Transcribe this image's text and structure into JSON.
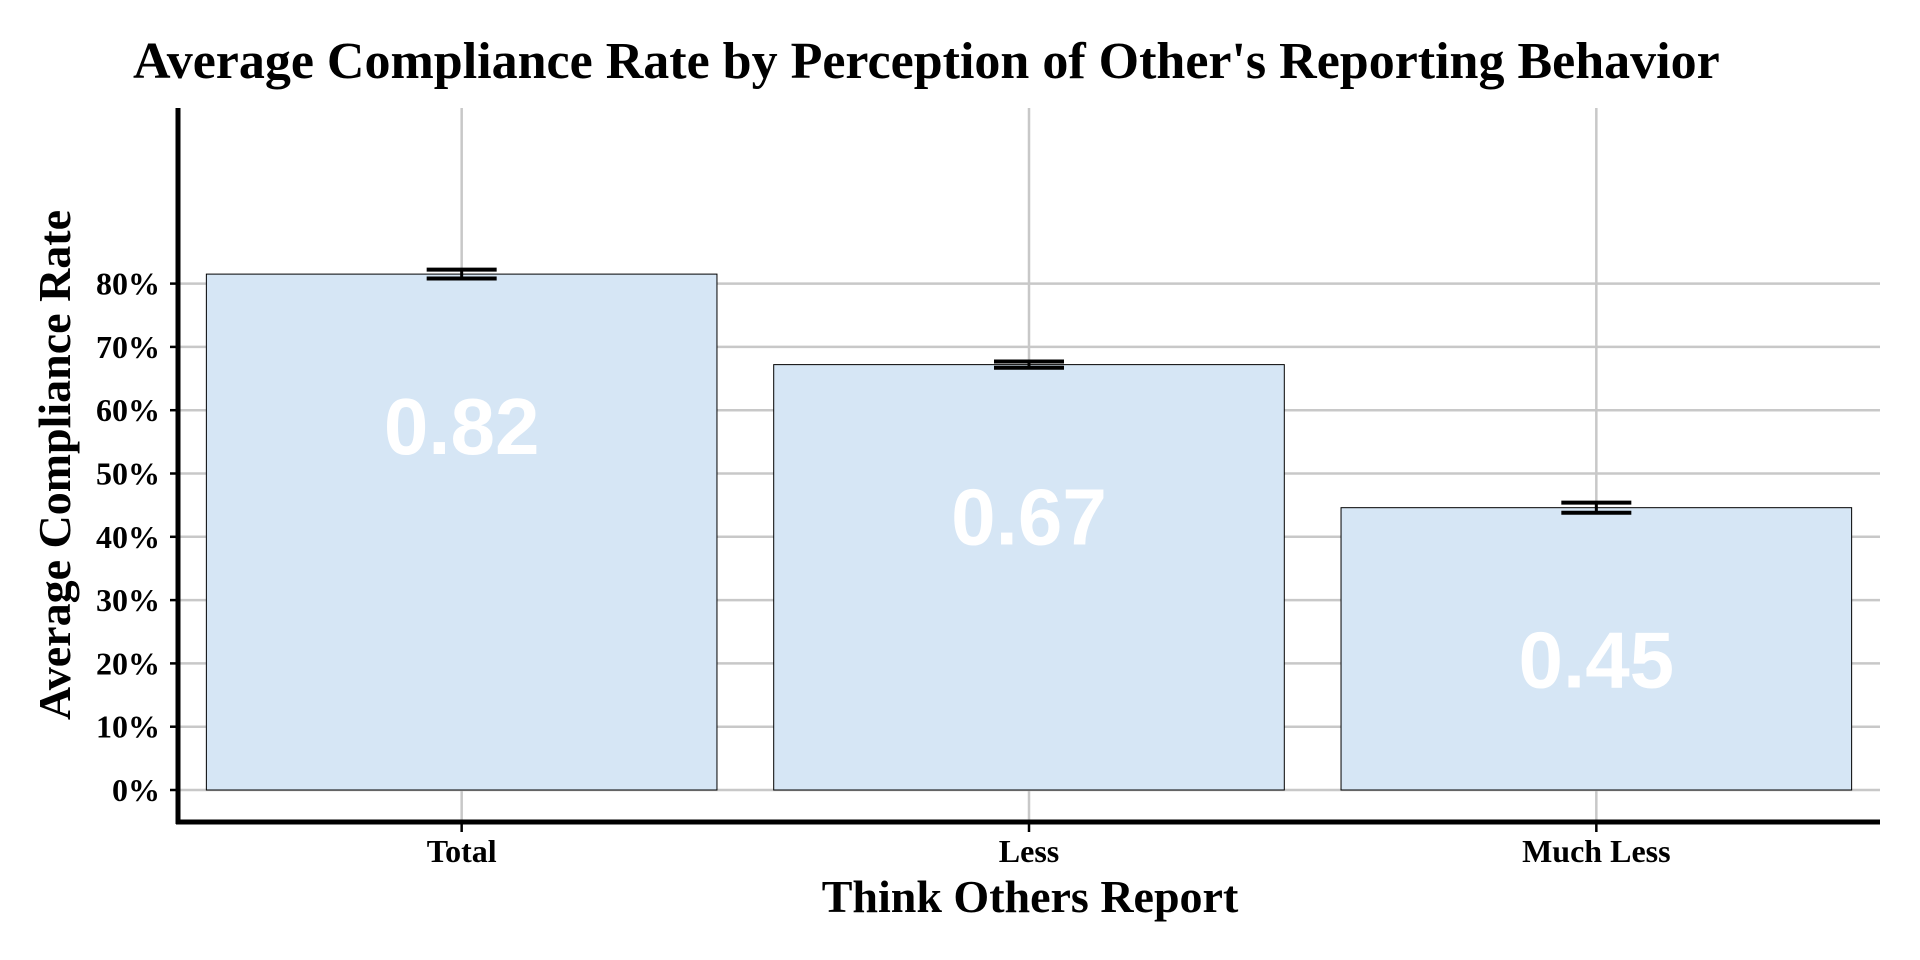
{
  "chart_data": {
    "type": "bar",
    "title": "Average Compliance Rate by Perception of Other's Reporting Behavior",
    "xlabel": "Think Others Report",
    "ylabel": "Average Compliance Rate",
    "categories": [
      "Total",
      "Less",
      "Much Less"
    ],
    "values": [
      0.815,
      0.672,
      0.446
    ],
    "data_labels": [
      "0.82",
      "0.67",
      "0.45"
    ],
    "error_bars": [
      {
        "low": 0.808,
        "high": 0.822
      },
      {
        "low": 0.667,
        "high": 0.677
      },
      {
        "low": 0.438,
        "high": 0.454
      }
    ],
    "ylim": [
      0,
      0.85
    ],
    "y_ticks": [
      0,
      0.1,
      0.2,
      0.3,
      0.4,
      0.5,
      0.6,
      0.7,
      0.8
    ],
    "y_tick_labels": [
      "0%",
      "10%",
      "20%",
      "30%",
      "40%",
      "50%",
      "60%",
      "70%",
      "80%"
    ],
    "grid": true,
    "legend": "none",
    "colors": {
      "bar_fill": "#d6e6f5",
      "bar_stroke": "#000000",
      "grid": "#c8c8c8",
      "axis": "#000000",
      "data_label": "#ffffff"
    }
  }
}
